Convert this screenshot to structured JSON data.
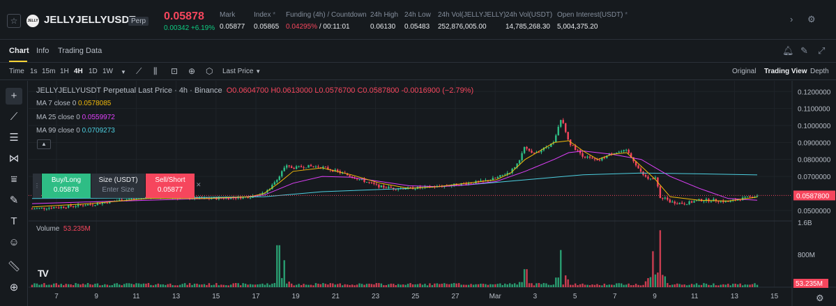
{
  "ticker": {
    "star_icon": "star-icon",
    "coin_logo_text": "JELLY",
    "symbol": "JELLYJELLYUSDT",
    "contract_type": "Perp",
    "last_price": "0.05878",
    "change": "0.00342 +6.19%",
    "stats": [
      {
        "label": "Mark",
        "value": "0.05877"
      },
      {
        "label": "Index",
        "value": "0.05865"
      },
      {
        "label": "Funding (4h) / Countdown",
        "value_red": "0.04295%",
        "value_rest": " / 00:11:01"
      },
      {
        "label": "24h High",
        "value": "0.06130"
      },
      {
        "label": "24h Low",
        "value": "0.05483"
      },
      {
        "label": "24h Vol(JELLYJELLY)",
        "value": "252,876,005.00"
      },
      {
        "label": "24h Vol(USDT)",
        "value": "14,785,268.30"
      },
      {
        "label": "Open Interest(USDT)",
        "value": "5,004,375.20"
      }
    ],
    "more_icon": "chevron-right-icon",
    "settings_icon": "gear-icon"
  },
  "tabs": {
    "items": [
      "Chart",
      "Info",
      "Trading Data"
    ],
    "active": "Chart"
  },
  "toolbar": {
    "time_label": "Time",
    "intervals": [
      "1s",
      "15m",
      "1H",
      "4H",
      "1D",
      "1W"
    ],
    "active_interval": "4H",
    "price_type": "Last Price",
    "views": [
      "Original",
      "Trading View",
      "Depth"
    ],
    "active_view": "Trading View"
  },
  "legend": {
    "title": "JELLYJELLYUSDT Perpetual Last Price · 4h · Binance",
    "ohlc": "O0.0604700 H0.0613000 L0.0576700 C0.0587800 -0.0016900 (−2.79%)",
    "ma": [
      {
        "label": "MA 7 close 0",
        "value": "0.0578085",
        "color": "#f0b90b"
      },
      {
        "label": "MA 25 close 0",
        "value": "0.0559972",
        "color": "#e040fb"
      },
      {
        "label": "MA 99 close 0",
        "value": "0.0709273",
        "color": "#4dd0e1"
      }
    ],
    "volume_label": "Volume",
    "volume_value": "53.235M"
  },
  "order": {
    "buy_label": "Buy/Long",
    "buy_price": "0.05878",
    "size_label": "Size (USDT)",
    "size_placeholder": "Enter Size",
    "sell_label": "Sell/Short",
    "sell_price": "0.05877"
  },
  "chart_data": {
    "type": "candlestick",
    "price_axis": [
      "0.1200000",
      "0.1100000",
      "0.1000000",
      "0.0900000",
      "0.0800000",
      "0.0700000",
      "0.0500000"
    ],
    "current_price_label": "0.0587800",
    "volume_axis": [
      "1.6B",
      "800M"
    ],
    "current_volume_label": "53.235M",
    "x_ticks": [
      "7",
      "9",
      "11",
      "13",
      "15",
      "17",
      "19",
      "21",
      "23",
      "25",
      "27",
      "Mar",
      "3",
      "5",
      "7",
      "9",
      "11",
      "13",
      "15"
    ],
    "ylim": [
      0.045,
      0.123
    ],
    "price_path": [
      [
        0,
        0.051
      ],
      [
        2,
        0.052
      ],
      [
        4,
        0.0535
      ],
      [
        5,
        0.0545
      ],
      [
        6,
        0.056
      ],
      [
        8,
        0.058
      ],
      [
        10,
        0.0575
      ],
      [
        12,
        0.057
      ],
      [
        14,
        0.0575
      ],
      [
        15,
        0.058
      ],
      [
        15.5,
        0.059
      ],
      [
        16,
        0.06
      ],
      [
        16.5,
        0.064
      ],
      [
        17,
        0.07
      ],
      [
        17.5,
        0.076
      ],
      [
        18,
        0.075
      ],
      [
        19,
        0.076
      ],
      [
        20,
        0.0755
      ],
      [
        21,
        0.073
      ],
      [
        22,
        0.07
      ],
      [
        23,
        0.067
      ],
      [
        24,
        0.064
      ],
      [
        25,
        0.063
      ],
      [
        26,
        0.063
      ],
      [
        27,
        0.0635
      ],
      [
        28,
        0.064
      ],
      [
        29,
        0.065
      ],
      [
        30,
        0.066
      ],
      [
        31,
        0.067
      ],
      [
        32,
        0.069
      ],
      [
        33,
        0.073
      ],
      [
        33.5,
        0.078
      ],
      [
        34,
        0.088
      ],
      [
        34.5,
        0.084
      ],
      [
        35,
        0.085
      ],
      [
        36,
        0.09
      ],
      [
        36.5,
        0.105
      ],
      [
        37,
        0.09
      ],
      [
        38,
        0.082
      ],
      [
        39,
        0.079
      ],
      [
        40,
        0.084
      ],
      [
        41,
        0.085
      ],
      [
        41.5,
        0.079
      ],
      [
        42,
        0.072
      ],
      [
        42.5,
        0.068
      ],
      [
        43,
        0.069
      ],
      [
        43.3,
        0.058
      ],
      [
        43.7,
        0.057
      ],
      [
        44,
        0.055
      ],
      [
        45,
        0.054
      ],
      [
        46,
        0.056
      ],
      [
        47,
        0.056
      ],
      [
        48,
        0.055
      ],
      [
        49,
        0.057
      ],
      [
        50,
        0.0588
      ]
    ],
    "ma7": [
      [
        0,
        0.052
      ],
      [
        4,
        0.054
      ],
      [
        8,
        0.057
      ],
      [
        12,
        0.057
      ],
      [
        15,
        0.058
      ],
      [
        16,
        0.06
      ],
      [
        17,
        0.066
      ],
      [
        18,
        0.073
      ],
      [
        20,
        0.075
      ],
      [
        22,
        0.071
      ],
      [
        24,
        0.066
      ],
      [
        26,
        0.063
      ],
      [
        28,
        0.064
      ],
      [
        30,
        0.066
      ],
      [
        32,
        0.068
      ],
      [
        33,
        0.072
      ],
      [
        34,
        0.08
      ],
      [
        35,
        0.085
      ],
      [
        36,
        0.09
      ],
      [
        37,
        0.091
      ],
      [
        38,
        0.085
      ],
      [
        39,
        0.08
      ],
      [
        40,
        0.083
      ],
      [
        41,
        0.084
      ],
      [
        42,
        0.076
      ],
      [
        43,
        0.068
      ],
      [
        44,
        0.058
      ],
      [
        46,
        0.056
      ],
      [
        48,
        0.0555
      ],
      [
        50,
        0.0578
      ]
    ],
    "ma25": [
      [
        0,
        0.054
      ],
      [
        8,
        0.056
      ],
      [
        14,
        0.0575
      ],
      [
        16,
        0.059
      ],
      [
        18,
        0.066
      ],
      [
        20,
        0.07
      ],
      [
        22,
        0.0695
      ],
      [
        24,
        0.067
      ],
      [
        26,
        0.0645
      ],
      [
        28,
        0.064
      ],
      [
        30,
        0.065
      ],
      [
        32,
        0.067
      ],
      [
        34,
        0.073
      ],
      [
        36,
        0.08
      ],
      [
        37,
        0.084
      ],
      [
        38,
        0.085
      ],
      [
        40,
        0.083
      ],
      [
        42,
        0.08
      ],
      [
        43,
        0.075
      ],
      [
        44,
        0.07
      ],
      [
        46,
        0.063
      ],
      [
        48,
        0.057
      ],
      [
        50,
        0.056
      ]
    ],
    "ma99": [
      [
        0,
        0.057
      ],
      [
        10,
        0.0575
      ],
      [
        16,
        0.058
      ],
      [
        20,
        0.061
      ],
      [
        26,
        0.063
      ],
      [
        30,
        0.065
      ],
      [
        34,
        0.068
      ],
      [
        38,
        0.071
      ],
      [
        42,
        0.072
      ],
      [
        46,
        0.0715
      ],
      [
        50,
        0.0709
      ]
    ],
    "volume_spikes": [
      [
        17,
        0.7
      ],
      [
        17.4,
        0.45
      ],
      [
        34,
        0.3
      ],
      [
        36.5,
        0.62
      ],
      [
        42.8,
        0.6
      ],
      [
        43.3,
        0.95
      ]
    ]
  }
}
